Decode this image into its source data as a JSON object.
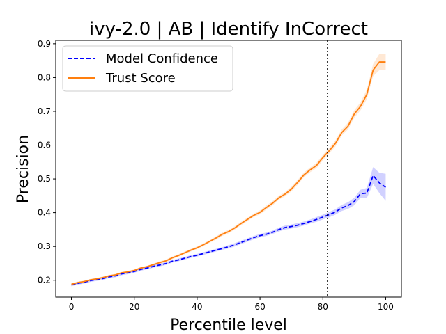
{
  "chart_data": {
    "type": "line",
    "title": "ivy-2.0 | AB | Identify InCorrect",
    "xlabel": "Percentile level",
    "ylabel": "Precision",
    "xlim": [
      -5,
      105
    ],
    "ylim": [
      0.15,
      0.91
    ],
    "xticks": [
      0,
      20,
      40,
      60,
      80,
      100
    ],
    "yticks": [
      0.2,
      0.3,
      0.4,
      0.5,
      0.6,
      0.7,
      0.8,
      0.9
    ],
    "grid": false,
    "legend_position": "top-left",
    "vline": {
      "x": 81.5,
      "style": "dotted",
      "color": "#000000"
    },
    "series": [
      {
        "name": "Model Confidence",
        "color": "#0000ff",
        "style": "dashed",
        "band_color": "#0000ff",
        "x": [
          0,
          2,
          4,
          6,
          8,
          10,
          12,
          14,
          16,
          18,
          20,
          22,
          24,
          26,
          28,
          30,
          32,
          34,
          36,
          38,
          40,
          42,
          44,
          46,
          48,
          50,
          52,
          54,
          56,
          58,
          60,
          62,
          64,
          66,
          68,
          70,
          72,
          74,
          76,
          78,
          80,
          82,
          84,
          86,
          88,
          90,
          92,
          94,
          96,
          98,
          100
        ],
        "values": [
          0.186,
          0.191,
          0.194,
          0.199,
          0.202,
          0.205,
          0.21,
          0.213,
          0.219,
          0.222,
          0.226,
          0.232,
          0.236,
          0.241,
          0.245,
          0.249,
          0.256,
          0.26,
          0.265,
          0.27,
          0.274,
          0.279,
          0.284,
          0.289,
          0.294,
          0.299,
          0.305,
          0.312,
          0.319,
          0.326,
          0.332,
          0.336,
          0.342,
          0.35,
          0.356,
          0.359,
          0.363,
          0.368,
          0.374,
          0.38,
          0.387,
          0.394,
          0.402,
          0.414,
          0.421,
          0.433,
          0.456,
          0.458,
          0.51,
          0.488,
          0.475
        ],
        "band": [
          0.004,
          0.004,
          0.004,
          0.004,
          0.004,
          0.004,
          0.004,
          0.004,
          0.004,
          0.004,
          0.004,
          0.004,
          0.004,
          0.004,
          0.004,
          0.004,
          0.004,
          0.004,
          0.004,
          0.004,
          0.004,
          0.004,
          0.004,
          0.004,
          0.004,
          0.005,
          0.005,
          0.005,
          0.005,
          0.005,
          0.005,
          0.005,
          0.005,
          0.006,
          0.006,
          0.006,
          0.006,
          0.006,
          0.006,
          0.007,
          0.007,
          0.008,
          0.008,
          0.009,
          0.01,
          0.011,
          0.012,
          0.015,
          0.025,
          0.03,
          0.04
        ]
      },
      {
        "name": "Trust Score",
        "color": "#ff7f0e",
        "style": "solid",
        "band_color": "#ff7f0e",
        "x": [
          0,
          2,
          4,
          6,
          8,
          10,
          12,
          14,
          16,
          18,
          20,
          22,
          24,
          26,
          28,
          30,
          32,
          34,
          36,
          38,
          40,
          42,
          44,
          46,
          48,
          50,
          52,
          54,
          56,
          58,
          60,
          62,
          64,
          66,
          68,
          70,
          72,
          74,
          76,
          78,
          80,
          82,
          84,
          86,
          88,
          90,
          92,
          94,
          96,
          98,
          100
        ],
        "values": [
          0.188,
          0.193,
          0.196,
          0.201,
          0.204,
          0.208,
          0.213,
          0.216,
          0.222,
          0.225,
          0.229,
          0.236,
          0.24,
          0.246,
          0.252,
          0.257,
          0.266,
          0.273,
          0.281,
          0.289,
          0.296,
          0.305,
          0.315,
          0.325,
          0.336,
          0.344,
          0.355,
          0.368,
          0.38,
          0.392,
          0.401,
          0.415,
          0.428,
          0.444,
          0.455,
          0.47,
          0.49,
          0.512,
          0.527,
          0.54,
          0.563,
          0.583,
          0.605,
          0.637,
          0.656,
          0.692,
          0.715,
          0.75,
          0.822,
          0.846,
          0.846
        ],
        "band": [
          0.003,
          0.003,
          0.003,
          0.003,
          0.003,
          0.003,
          0.003,
          0.003,
          0.003,
          0.003,
          0.003,
          0.003,
          0.003,
          0.003,
          0.004,
          0.004,
          0.004,
          0.004,
          0.004,
          0.004,
          0.004,
          0.004,
          0.004,
          0.005,
          0.005,
          0.005,
          0.005,
          0.005,
          0.005,
          0.005,
          0.006,
          0.006,
          0.006,
          0.006,
          0.006,
          0.007,
          0.007,
          0.007,
          0.007,
          0.008,
          0.008,
          0.008,
          0.009,
          0.009,
          0.01,
          0.011,
          0.012,
          0.014,
          0.018,
          0.024,
          0.024
        ]
      }
    ]
  }
}
